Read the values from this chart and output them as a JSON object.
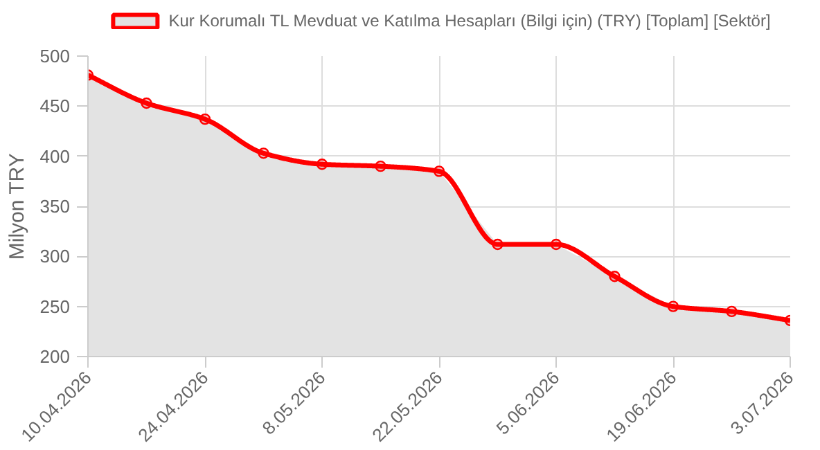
{
  "chart_data": {
    "type": "area",
    "ylabel": "Milyon TRY",
    "x": [
      "2026-04-10",
      "2026-04-17",
      "2026-04-24",
      "2026-05-01",
      "2026-05-08",
      "2026-05-15",
      "2026-05-22",
      "2026-05-29",
      "2026-06-05",
      "2026-06-12",
      "2026-06-19",
      "2026-06-26",
      "2026-07-03"
    ],
    "series": [
      {
        "name": "Kur Korumalı TL Mevduat ve Katılma Hesapları (Bilgi için) (TRY) [Toplam] [Sektör]",
        "color": "#ff0000",
        "values": [
          481,
          453,
          437,
          403,
          392,
          390,
          385,
          312,
          312,
          280,
          250,
          245,
          236
        ]
      }
    ],
    "xlim": [
      "2026-04-10",
      "2026-07-03"
    ],
    "xticks": [
      {
        "value": "2026-04-10",
        "label": "10.04.2026"
      },
      {
        "value": "2026-04-24",
        "label": "24.04.2026"
      },
      {
        "value": "2026-05-08",
        "label": "8.05.2026"
      },
      {
        "value": "2026-05-22",
        "label": "22.05.2026"
      },
      {
        "value": "2026-06-05",
        "label": "5.06.2026"
      },
      {
        "value": "2026-06-19",
        "label": "19.06.2026"
      },
      {
        "value": "2026-07-03",
        "label": "3.07.2026"
      }
    ],
    "ylim": [
      200,
      500
    ],
    "yticks": [
      200,
      250,
      300,
      350,
      400,
      450,
      500
    ],
    "grid": true,
    "legend": "top",
    "marker": "circle",
    "line_style": "solid"
  }
}
